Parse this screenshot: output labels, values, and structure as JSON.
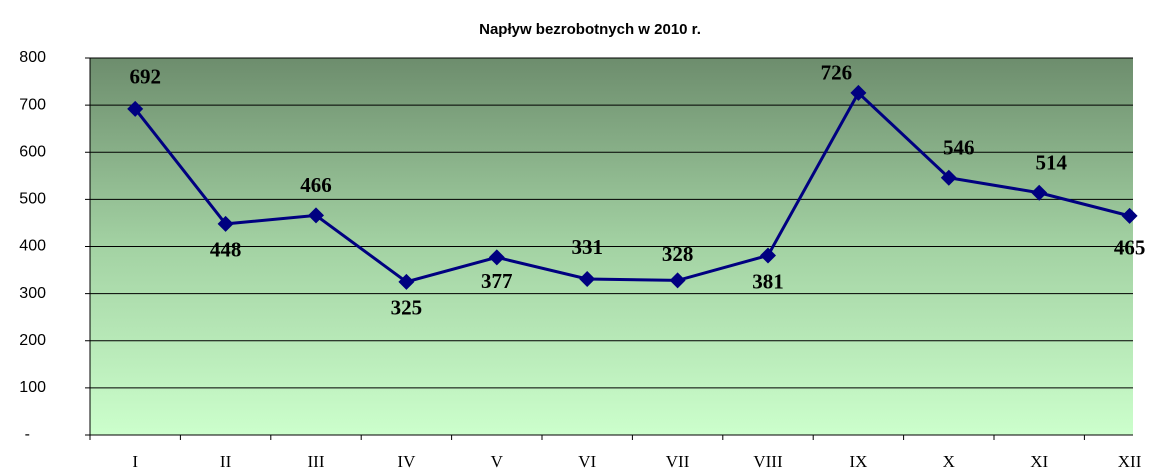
{
  "chart_data": {
    "type": "line",
    "title": "Napływ bezrobotnych w 2010 r.",
    "categories": [
      "I",
      "II",
      "III",
      "IV",
      "V",
      "VI",
      "VII",
      "VIII",
      "IX",
      "X",
      "XI",
      "XII"
    ],
    "series": [
      {
        "name": "Napływ bezrobotnych",
        "color": "#000080",
        "values": [
          692,
          448,
          466,
          325,
          377,
          331,
          328,
          381,
          726,
          546,
          514,
          465
        ]
      }
    ],
    "ylim": [
      0,
      800
    ],
    "yticks": [
      {
        "value": 0,
        "label": "-"
      },
      100,
      200,
      300,
      400,
      500,
      600,
      700,
      800
    ],
    "grid": true
  }
}
